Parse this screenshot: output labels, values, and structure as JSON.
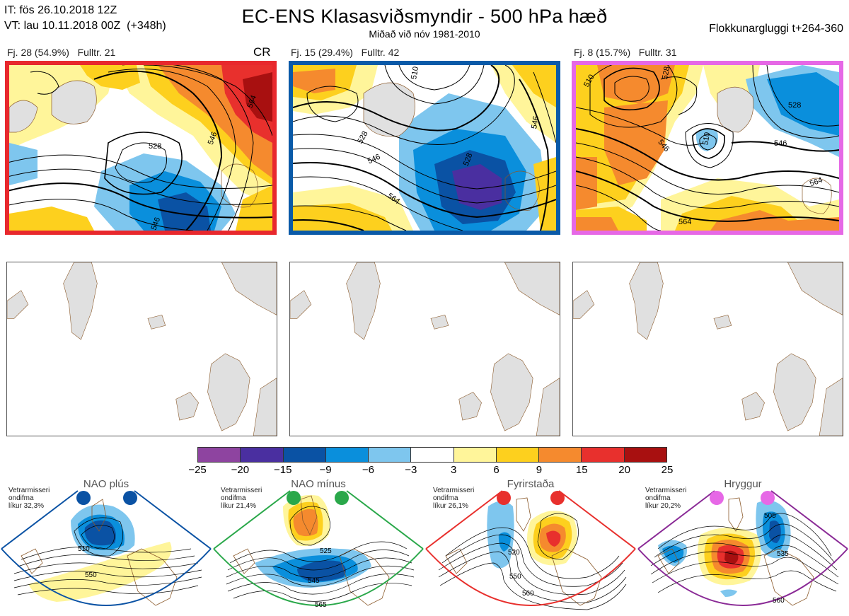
{
  "header": {
    "it_line": "IT: fös 26.10.2018 12Z",
    "vt_line": "VT: lau 10.11.2018 00Z  (+348h)",
    "title": "EC-ENS Klasasviðsmyndir - 500 hPa hæð",
    "subtitle": "Miðað við nóv 1981-2010",
    "window": "Flokkunargluggi t+264-360"
  },
  "panels": [
    {
      "caption": "Fj. 28 (54.9%)   Fulltr. 21",
      "regime_code": "CR",
      "frame_color": "#e8282d",
      "contour_labels": [
        "528",
        "546",
        "546",
        "564"
      ]
    },
    {
      "caption": "Fj. 15 (29.4%)   Fulltr. 42",
      "frame_color": "#0a5aa8",
      "contour_labels": [
        "510",
        "528",
        "546",
        "564",
        "528",
        "546"
      ]
    },
    {
      "caption": "Fj. 8 (15.7%)   Fulltr. 31",
      "frame_color": "#e668e6",
      "contour_labels": [
        "510",
        "528",
        "546",
        "510",
        "528",
        "546",
        "564",
        "564"
      ]
    }
  ],
  "colorbar": {
    "colors": [
      "#8e44a0",
      "#4a2fa0",
      "#0a52a4",
      "#0a8fdc",
      "#7ec6ee",
      "#ffffff",
      "#fff59a",
      "#fdd01e",
      "#f58a2e",
      "#e8302d",
      "#a81010"
    ],
    "labels": [
      "−25",
      "−20",
      "−15",
      "−9",
      "−6",
      "−3",
      "3",
      "6",
      "9",
      "15",
      "20",
      "25"
    ]
  },
  "regimes": [
    {
      "name": "NAO plús",
      "note_lines": [
        "Vetrarmisseri",
        "ondifma",
        "líkur 32,3%"
      ],
      "border_color": "#0a52a4",
      "dot_color": "#0a52a4",
      "contour_labels": [
        "510",
        "550"
      ]
    },
    {
      "name": "NAO mínus",
      "note_lines": [
        "Vetrarmisseri",
        "ondifma",
        "líkur 21,4%"
      ],
      "border_color": "#2aa84a",
      "dot_color": "#2aa84a",
      "contour_labels": [
        "525",
        "545",
        "565"
      ]
    },
    {
      "name": "Fyrirstaða",
      "note_lines": [
        "Vetrarmisseri",
        "ondifma",
        "líkur 26,1%"
      ],
      "border_color": "#e8302d",
      "dot_color": "#e8302d",
      "contour_labels": [
        "520",
        "550",
        "560"
      ]
    },
    {
      "name": "Hryggur",
      "note_lines": [
        "Vetrarmisseri",
        "ondifma",
        "líkur 20,2%"
      ],
      "border_color": "#8a2a96",
      "dot_color": "#e668e6",
      "contour_labels": [
        "505",
        "535",
        "560"
      ]
    }
  ]
}
